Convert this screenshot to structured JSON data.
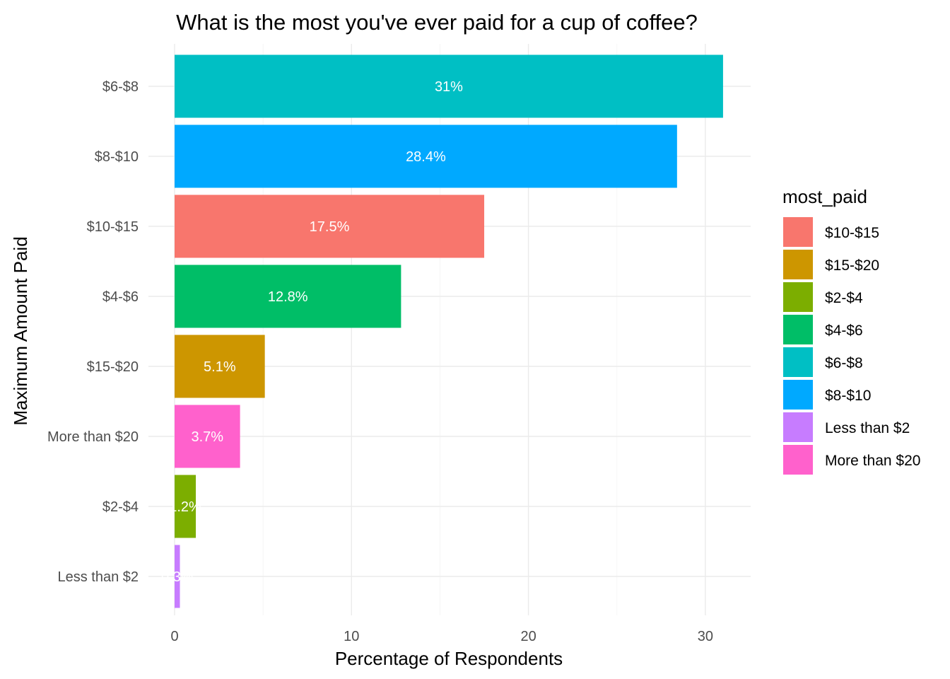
{
  "chart_data": {
    "type": "bar",
    "orientation": "horizontal",
    "title": "What is the most you've ever paid for a cup of coffee?",
    "xlabel": "Percentage of Respondents",
    "ylabel": "Maximum Amount Paid",
    "xlim": [
      0,
      32.5
    ],
    "x_ticks": [
      0,
      10,
      20,
      30
    ],
    "grid": true,
    "categories": [
      "$6-$8",
      "$8-$10",
      "$10-$15",
      "$4-$6",
      "$15-$20",
      "More than $20",
      "$2-$4",
      "Less than $2"
    ],
    "values": [
      31,
      28.4,
      17.5,
      12.8,
      5.1,
      3.7,
      1.2,
      0.3
    ],
    "data_labels": [
      "31%",
      "28.4%",
      "17.5%",
      "12.8%",
      "5.1%",
      "3.7%",
      "1.2%",
      "0.3%"
    ],
    "colors": [
      "#00BFC4",
      "#00A9FF",
      "#F8766D",
      "#00BE67",
      "#CD9600",
      "#FF61CC",
      "#7CAE00",
      "#C77CFF"
    ],
    "legend": {
      "title": "most_paid",
      "position": "right",
      "items": [
        {
          "label": "$10-$15",
          "color": "#F8766D"
        },
        {
          "label": "$15-$20",
          "color": "#CD9600"
        },
        {
          "label": "$2-$4",
          "color": "#7CAE00"
        },
        {
          "label": "$4-$6",
          "color": "#00BE67"
        },
        {
          "label": "$6-$8",
          "color": "#00BFC4"
        },
        {
          "label": "$8-$10",
          "color": "#00A9FF"
        },
        {
          "label": "Less than $2",
          "color": "#C77CFF"
        },
        {
          "label": "More than $20",
          "color": "#FF61CC"
        }
      ]
    }
  }
}
